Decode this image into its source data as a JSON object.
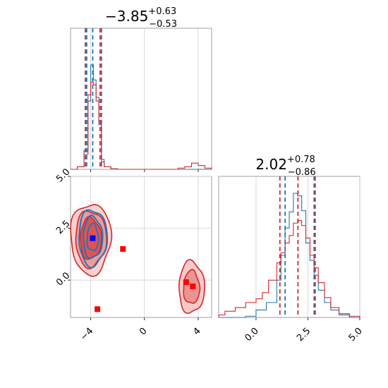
{
  "chart_data": [
    {
      "type": "histogram",
      "panel": "marginal-x",
      "title": {
        "median": "−3.85",
        "plus": "+0.63",
        "minus": "−0.53"
      },
      "xlim": [
        -5.5,
        5.0
      ],
      "xticks": [
        -4,
        0,
        4
      ],
      "grid": true,
      "series": [
        {
          "color": "#1f77b4",
          "bin_edges": [
            -5.5,
            -5.0,
            -4.5,
            -4.2,
            -4.0,
            -3.8,
            -3.6,
            -3.4,
            -3.2,
            -3.0,
            -2.5,
            -2.0,
            5.0
          ],
          "counts": [
            0.0,
            0.02,
            0.15,
            0.55,
            0.84,
            0.72,
            0.58,
            0.36,
            0.08,
            0.02,
            0.005,
            0.0
          ],
          "vlines": [
            -4.3,
            -3.85,
            -3.2
          ]
        },
        {
          "color": "#d62728",
          "bin_edges": [
            -5.5,
            -5.0,
            -4.5,
            -4.2,
            -4.0,
            -3.8,
            -3.6,
            -3.4,
            -3.2,
            -3.0,
            -2.5,
            -2.0,
            2.5,
            3.0,
            3.5,
            4.0,
            4.5,
            5.0
          ],
          "counts": [
            0.0,
            0.02,
            0.12,
            0.6,
            0.7,
            0.68,
            0.55,
            0.38,
            0.06,
            0.02,
            0.005,
            0.0,
            0.01,
            0.02,
            0.05,
            0.03,
            0.01
          ],
          "vlines": [
            -4.4,
            -3.3
          ]
        }
      ]
    },
    {
      "type": "histogram",
      "panel": "marginal-y",
      "title": {
        "median": "2.02",
        "plus": "+0.78",
        "minus": "−0.86"
      },
      "xlim": [
        -1.8,
        5.0
      ],
      "xticks": [
        0.0,
        2.5,
        5.0
      ],
      "xticklabels": [
        "0.0",
        "2.5",
        "5.0"
      ],
      "grid": true,
      "series": [
        {
          "color": "#1f77b4",
          "bin_edges": [
            -1.8,
            -0.5,
            0.0,
            0.5,
            1.0,
            1.2,
            1.4,
            1.6,
            1.8,
            2.0,
            2.2,
            2.4,
            2.6,
            2.8,
            3.0,
            3.3,
            3.6,
            4.0,
            4.5,
            5.0
          ],
          "counts": [
            0.0,
            0.01,
            0.06,
            0.12,
            0.3,
            0.5,
            0.72,
            0.85,
            1.0,
            0.98,
            0.86,
            0.6,
            0.46,
            0.34,
            0.22,
            0.12,
            0.06,
            0.02,
            0.0
          ],
          "vlines": [
            1.4,
            2.8
          ]
        },
        {
          "color": "#d62728",
          "bin_edges": [
            -1.8,
            -1.5,
            -1.0,
            -0.5,
            0.0,
            0.3,
            0.6,
            1.0,
            1.2,
            1.4,
            1.6,
            1.8,
            2.0,
            2.2,
            2.4,
            2.6,
            2.8,
            3.0,
            3.3,
            3.6,
            4.0,
            4.5,
            5.0
          ],
          "counts": [
            0.02,
            0.05,
            0.08,
            0.12,
            0.15,
            0.2,
            0.3,
            0.44,
            0.52,
            0.6,
            0.66,
            0.76,
            0.78,
            0.74,
            0.64,
            0.5,
            0.4,
            0.28,
            0.16,
            0.08,
            0.03,
            0.01
          ],
          "vlines": [
            1.15,
            2.02,
            2.85
          ]
        }
      ]
    },
    {
      "type": "scatter",
      "panel": "joint",
      "xlim": [
        -5.5,
        5.0
      ],
      "ylim": [
        -1.8,
        5.0
      ],
      "xticks": [
        -4,
        0,
        4
      ],
      "yticks": [
        0.0,
        2.5,
        5.0
      ],
      "yticklabels": [
        "0.0",
        "2.5",
        "5.0"
      ],
      "grid": true,
      "contours": [
        {
          "color": "#d62728",
          "center": [
            -4.0,
            2.0
          ],
          "radii": [
            [
              1.5,
              1.7
            ],
            [
              1.15,
              1.35
            ],
            [
              0.78,
              1.0
            ]
          ]
        },
        {
          "color": "#1f77b4",
          "center": [
            -3.85,
            2.05
          ],
          "radii": [
            [
              1.05,
              1.35
            ],
            [
              0.72,
              1.0
            ],
            [
              0.42,
              0.65
            ]
          ]
        },
        {
          "color": "#d62728",
          "center": [
            3.5,
            -0.35
          ],
          "radii": [
            [
              0.95,
              1.25
            ],
            [
              0.6,
              0.8
            ]
          ]
        }
      ],
      "points": [
        {
          "color": "#0000ff",
          "marker": "square",
          "x": -3.85,
          "y": 2.02
        },
        {
          "color": "#ff0000",
          "marker": "square",
          "x": -1.6,
          "y": 1.5
        },
        {
          "color": "#ff0000",
          "marker": "square",
          "x": -3.5,
          "y": -1.4
        },
        {
          "color": "#ff0000",
          "marker": "square",
          "x": 3.1,
          "y": -0.1
        },
        {
          "color": "#ff0000",
          "marker": "square",
          "x": 3.6,
          "y": -0.3
        }
      ]
    }
  ]
}
